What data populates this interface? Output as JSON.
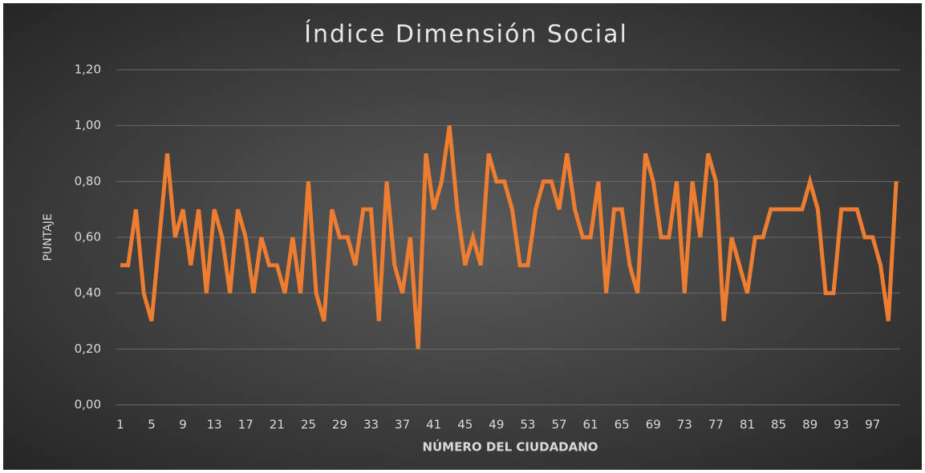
{
  "chart_data": {
    "type": "line",
    "title": "Índice Dimensión Social",
    "x_label": "NÚMERO DEL CIUDADANO",
    "y_label": "PUNTAJE",
    "categories": [
      1,
      null,
      null,
      null,
      5,
      null,
      null,
      null,
      9,
      null,
      null,
      null,
      13,
      null,
      null,
      null,
      17,
      null,
      null,
      null,
      21,
      null,
      null,
      null,
      25,
      null,
      null,
      null,
      29,
      null,
      null,
      null,
      33,
      null,
      null,
      null,
      37,
      null,
      null,
      null,
      41,
      null,
      null,
      null,
      45,
      null,
      null,
      null,
      49,
      null,
      null,
      null,
      53,
      null,
      null,
      null,
      57,
      null,
      null,
      null,
      61,
      null,
      null,
      null,
      65,
      null,
      null,
      null,
      69,
      null,
      null,
      null,
      73,
      null,
      null,
      null,
      77,
      null,
      null,
      null,
      81,
      null,
      null,
      null,
      85,
      null,
      null,
      null,
      89,
      null,
      null,
      null,
      93,
      null,
      null,
      null,
      97,
      null,
      null,
      null
    ],
    "series": [
      {
        "name": "Índice",
        "color": "#ed7d31",
        "values": [
          0.5,
          0.5,
          0.7,
          0.4,
          0.3,
          0.6,
          0.9,
          0.6,
          0.7,
          0.5,
          0.7,
          0.4,
          0.7,
          0.6,
          0.4,
          0.7,
          0.6,
          0.4,
          0.6,
          0.5,
          0.5,
          0.4,
          0.6,
          0.4,
          0.8,
          0.4,
          0.3,
          0.7,
          0.6,
          0.6,
          0.5,
          0.7,
          0.7,
          0.3,
          0.8,
          0.5,
          0.4,
          0.6,
          0.2,
          0.9,
          0.7,
          0.8,
          1.0,
          0.7,
          0.5,
          0.6,
          0.5,
          0.9,
          0.8,
          0.8,
          0.7,
          0.5,
          0.5,
          0.7,
          0.8,
          0.8,
          0.7,
          0.9,
          0.7,
          0.6,
          0.6,
          0.8,
          0.4,
          0.7,
          0.7,
          0.5,
          0.4,
          0.9,
          0.8,
          0.6,
          0.6,
          0.8,
          0.4,
          0.8,
          0.6,
          0.9,
          0.8,
          0.3,
          0.6,
          0.5,
          0.4,
          0.6,
          0.6,
          0.7,
          0.7,
          0.7,
          0.7,
          0.7,
          0.8,
          0.7,
          0.4,
          0.4,
          0.7,
          0.7,
          0.7,
          0.6,
          0.6,
          0.5,
          0.3,
          0.8
        ]
      }
    ],
    "ylim": [
      0,
      1.2
    ],
    "yticks": [
      {
        "value": 0,
        "label": "0,00"
      },
      {
        "value": 0.2,
        "label": "0,20"
      },
      {
        "value": 0.4,
        "label": "0,40"
      },
      {
        "value": 0.6,
        "label": "0,60"
      },
      {
        "value": 0.8,
        "label": "0,80"
      },
      {
        "value": 1.0,
        "label": "1,00"
      },
      {
        "value": 1.2,
        "label": "1,20"
      }
    ],
    "grid": true
  }
}
